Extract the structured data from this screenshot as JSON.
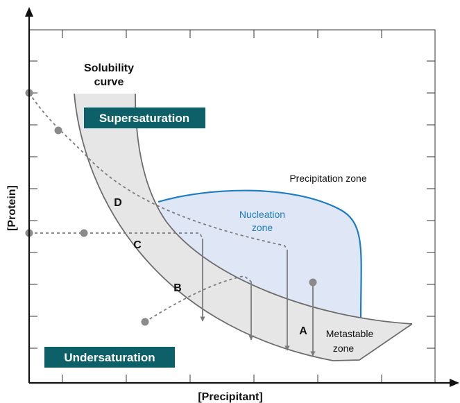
{
  "diagram": {
    "axes": {
      "x_label": "[Precipitant]",
      "y_label": "[Protein]"
    },
    "labels": {
      "solubility_line1": "Solubility",
      "solubility_line2": "curve",
      "supersaturation": "Supersaturation",
      "undersaturation": "Undersaturation",
      "precipitation_zone": "Precipitation zone",
      "nucleation_line1": "Nucleation",
      "nucleation_line2": "zone",
      "metastable_line1": "Metastable",
      "metastable_line2": "zone"
    },
    "path_labels": {
      "a": "A",
      "b": "B",
      "c": "C",
      "d": "D"
    },
    "colors": {
      "badge_bg": "#0d5f68",
      "badge_text": "#ffffff",
      "nucleation_fill": "#dfe6f6",
      "nucleation_stroke": "#1e7dc2",
      "nucleation_text": "#1e7dc2",
      "metastable_fill": "#e6e6e6",
      "curve_stroke": "#6d6d6d",
      "path_color": "#7c7c7c",
      "axis_color": "#111111"
    }
  }
}
